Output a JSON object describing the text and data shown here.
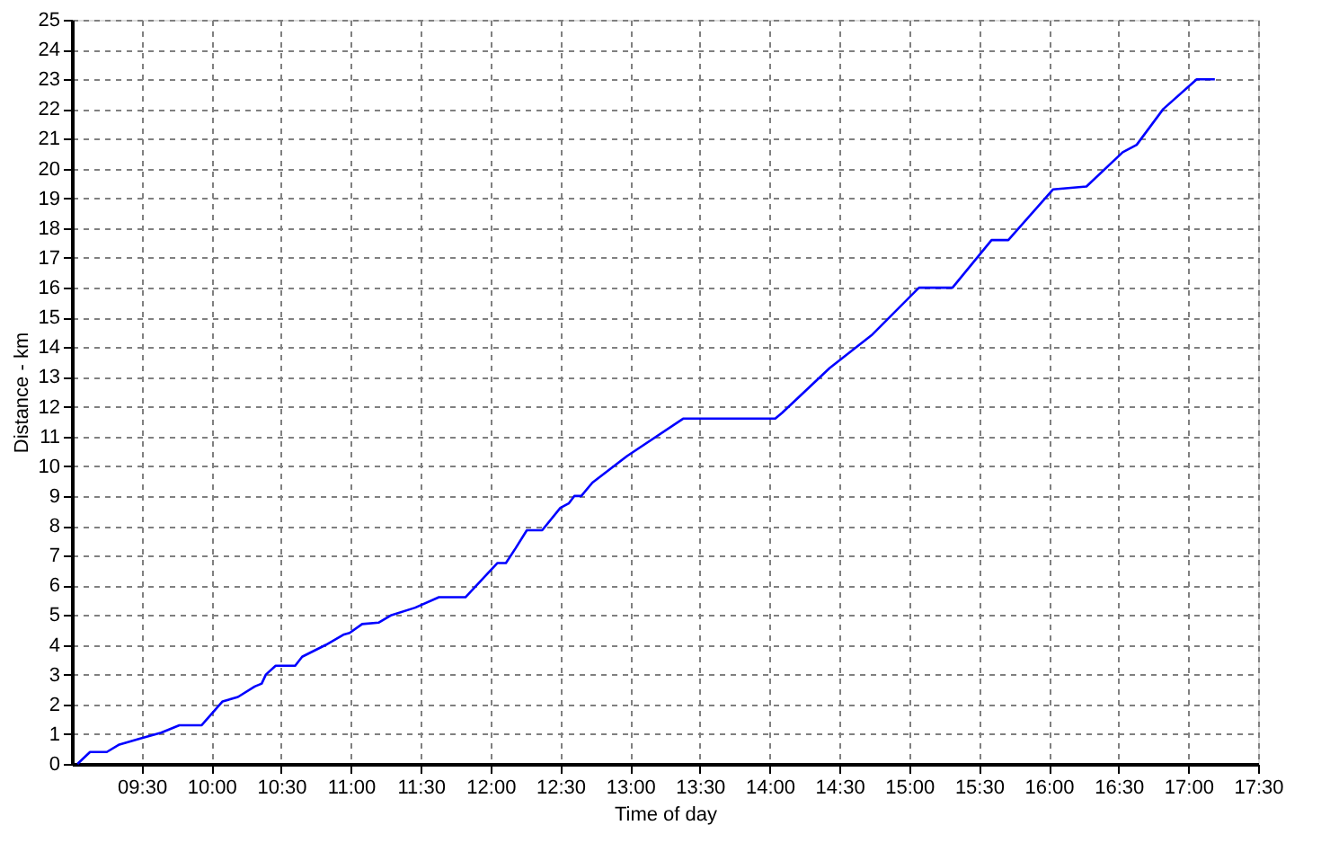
{
  "chart_data": {
    "type": "line",
    "xlabel": "Time of day",
    "ylabel": "Distance - km",
    "x": [
      9.04,
      9.13,
      9.25,
      9.34,
      9.49,
      9.64,
      9.77,
      9.93,
      10.08,
      10.19,
      10.31,
      10.36,
      10.39,
      10.46,
      10.6,
      10.65,
      10.82,
      10.95,
      10.99,
      11.08,
      11.2,
      11.29,
      11.46,
      11.63,
      11.82,
      11.97,
      12.05,
      12.11,
      12.18,
      12.26,
      12.37,
      12.5,
      12.56,
      12.6,
      12.65,
      12.73,
      12.98,
      13.38,
      14.04,
      14.09,
      14.43,
      14.73,
      15.07,
      15.31,
      15.59,
      15.71,
      16.03,
      16.27,
      16.53,
      16.63,
      16.82,
      17.06,
      17.19
    ],
    "series": [
      {
        "color": "#0000ff",
        "values": [
          0,
          0.4,
          0.4,
          0.65,
          0.85,
          1.05,
          1.3,
          1.3,
          2.1,
          2.25,
          2.6,
          2.7,
          3.0,
          3.3,
          3.3,
          3.6,
          4.0,
          4.35,
          4.4,
          4.7,
          4.75,
          5.0,
          5.25,
          5.6,
          5.6,
          6.35,
          6.75,
          6.75,
          7.25,
          7.85,
          7.85,
          8.6,
          8.75,
          9.0,
          9.0,
          9.45,
          10.35,
          11.6,
          11.6,
          11.8,
          13.3,
          14.4,
          16.0,
          16.0,
          17.6,
          17.6,
          19.3,
          19.4,
          20.55,
          20.8,
          22.0,
          23.0,
          23.0
        ]
      }
    ],
    "xlim": [
      9,
      17.5
    ],
    "xticks": [
      {
        "value": 9.5,
        "label": "09:30"
      },
      {
        "value": 10,
        "label": "10:00"
      },
      {
        "value": 10.5,
        "label": "10:30"
      },
      {
        "value": 11,
        "label": "11:00"
      },
      {
        "value": 11.5,
        "label": "11:30"
      },
      {
        "value": 12,
        "label": "12:00"
      },
      {
        "value": 12.5,
        "label": "12:30"
      },
      {
        "value": 13,
        "label": "13:00"
      },
      {
        "value": 13.5,
        "label": "13:30"
      },
      {
        "value": 14,
        "label": "14:00"
      },
      {
        "value": 14.5,
        "label": "14:30"
      },
      {
        "value": 15,
        "label": "15:00"
      },
      {
        "value": 15.5,
        "label": "15:30"
      },
      {
        "value": 16,
        "label": "16:00"
      },
      {
        "value": 16.5,
        "label": "16:30"
      },
      {
        "value": 17,
        "label": "17:00"
      },
      {
        "value": 17.5,
        "label": "17:30"
      }
    ],
    "ylim": [
      0,
      25
    ],
    "yticks": [
      0,
      1,
      2,
      3,
      4,
      5,
      6,
      7,
      8,
      9,
      10,
      11,
      12,
      13,
      14,
      15,
      16,
      17,
      18,
      19,
      20,
      21,
      22,
      23,
      24,
      25
    ],
    "grid": true,
    "marker": "none",
    "line_style": "solid"
  }
}
